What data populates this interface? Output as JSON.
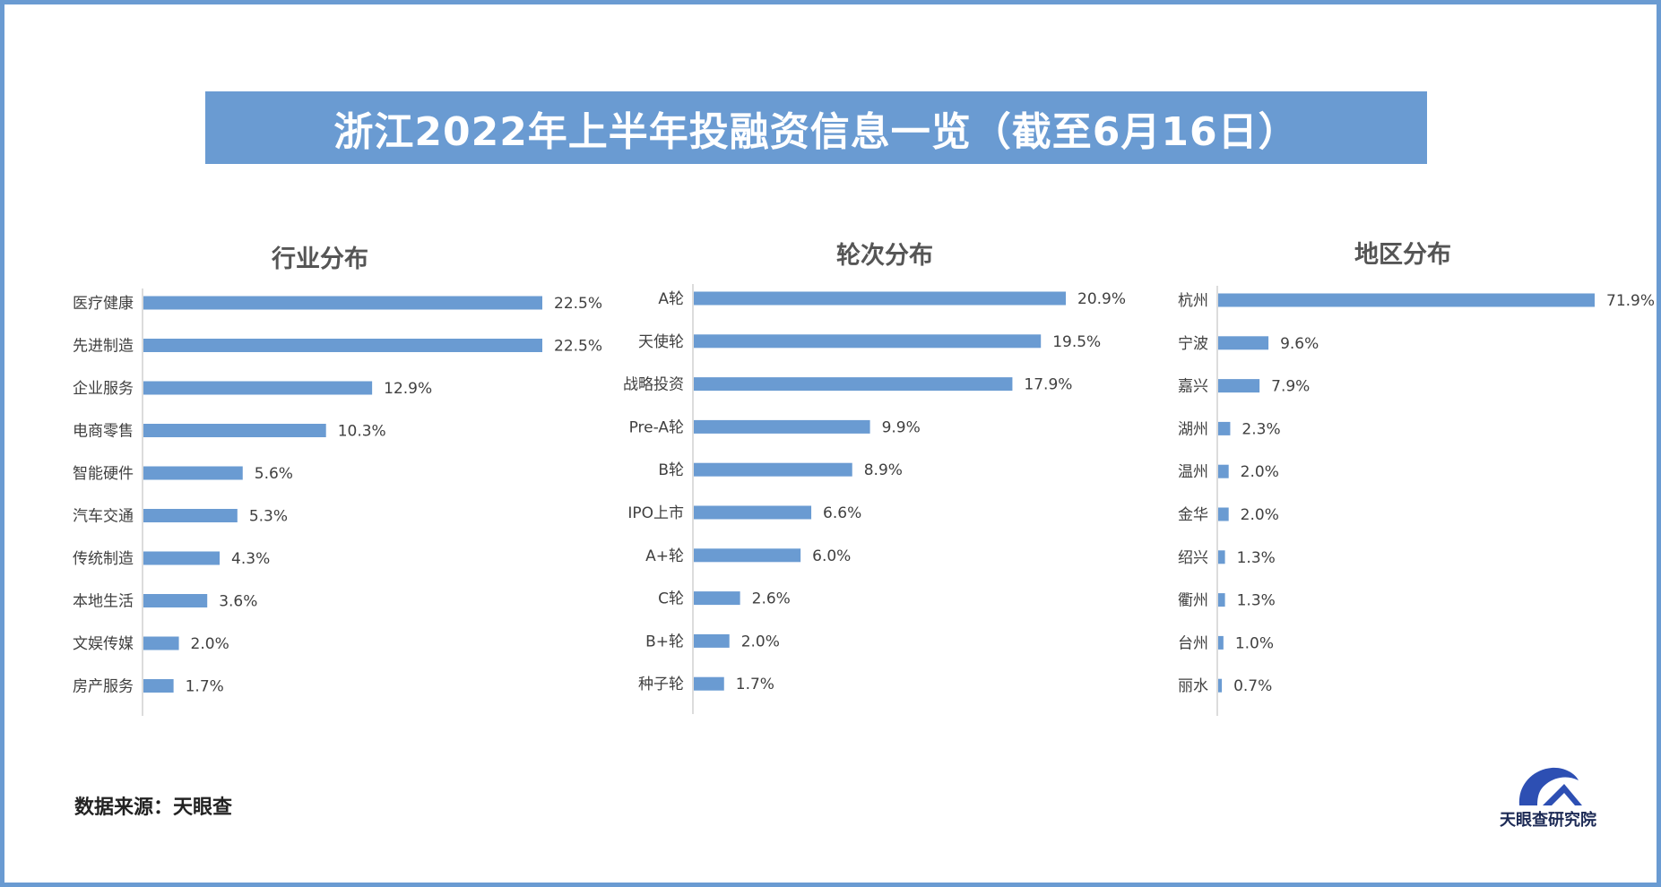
{
  "title": "浙江2022年上半年投融资信息一览（截至6月16日）",
  "source": "数据来源：天眼查",
  "logo_text": "天眼查研究院",
  "colors": {
    "bar": "#6a9bd2",
    "frame": "#6a9bd2",
    "axis": "#d0d0d0"
  },
  "chart_data": [
    {
      "type": "bar",
      "orientation": "horizontal",
      "title": "行业分布",
      "categories": [
        "医疗健康",
        "先进制造",
        "企业服务",
        "电商零售",
        "智能硬件",
        "汽车交通",
        "传统制造",
        "本地生活",
        "文娱传媒",
        "房产服务"
      ],
      "values": [
        22.5,
        22.5,
        12.9,
        10.3,
        5.6,
        5.3,
        4.3,
        3.6,
        2.0,
        1.7
      ],
      "labels": [
        "22.5%",
        "22.5%",
        "12.9%",
        "10.3%",
        "5.6%",
        "5.3%",
        "4.3%",
        "3.6%",
        "2.0%",
        "1.7%"
      ],
      "xlim": [
        0,
        22.5
      ],
      "unit": "%",
      "grid": false
    },
    {
      "type": "bar",
      "orientation": "horizontal",
      "title": "轮次分布",
      "categories": [
        "A轮",
        "天使轮",
        "战略投资",
        "Pre-A轮",
        "B轮",
        "IPO上市",
        "A+轮",
        "C轮",
        "B+轮",
        "种子轮"
      ],
      "values": [
        20.9,
        19.5,
        17.9,
        9.9,
        8.9,
        6.6,
        6.0,
        2.6,
        2.0,
        1.7
      ],
      "labels": [
        "20.9%",
        "19.5%",
        "17.9%",
        "9.9%",
        "8.9%",
        "6.6%",
        "6.0%",
        "2.6%",
        "2.0%",
        "1.7%"
      ],
      "xlim": [
        0,
        20.9
      ],
      "unit": "%",
      "grid": false
    },
    {
      "type": "bar",
      "orientation": "horizontal",
      "title": "地区分布",
      "categories": [
        "杭州",
        "宁波",
        "嘉兴",
        "湖州",
        "温州",
        "金华",
        "绍兴",
        "衢州",
        "台州",
        "丽水"
      ],
      "values": [
        71.9,
        9.6,
        7.9,
        2.3,
        2.0,
        2.0,
        1.3,
        1.3,
        1.0,
        0.7
      ],
      "labels": [
        "71.9%",
        "9.6%",
        "7.9%",
        "2.3%",
        "2.0%",
        "2.0%",
        "1.3%",
        "1.3%",
        "1.0%",
        "0.7%"
      ],
      "xlim": [
        0,
        71.9
      ],
      "unit": "%",
      "grid": false
    }
  ]
}
